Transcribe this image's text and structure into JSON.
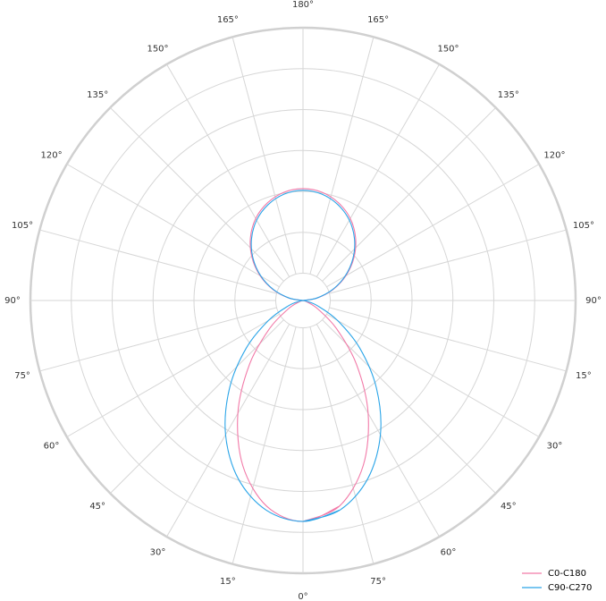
{
  "chart_data": {
    "type": "polar-line",
    "title": "",
    "angle_labels": [
      "0°",
      "15°",
      "30°",
      "45°",
      "60°",
      "75°",
      "90°",
      "105°",
      "120°",
      "135°",
      "150°",
      "165°",
      "180°",
      "165°",
      "150°",
      "135°",
      "120°",
      "105°",
      "90°",
      "15°",
      "30°",
      "45°",
      "60°",
      "75°"
    ],
    "angle_zero": "bottom",
    "radial_max": 100,
    "radial_rings": [
      10,
      25,
      40,
      55,
      70,
      85,
      100
    ],
    "grid": true,
    "legend_placement": "bottom-right",
    "angles_deg": [
      0,
      10,
      20,
      30,
      40,
      50,
      60,
      70,
      80,
      90,
      100,
      110,
      120,
      130,
      140,
      150,
      160,
      170,
      180
    ],
    "series": [
      {
        "name": "C0-C180",
        "color": "#f27aa8",
        "values": [
          81,
          76.6,
          64.5,
          47.8,
          30.5,
          16.0,
          6.4,
          1.6,
          0.1,
          0,
          5.3,
          11.7,
          18.2,
          24.4,
          30.0,
          34.7,
          38.1,
          40.3,
          41
        ]
      },
      {
        "name": "C90-C270",
        "color": "#2ba5e8",
        "values": [
          81,
          78.0,
          69.5,
          56.8,
          41.9,
          27.2,
          14.6,
          5.7,
          1.1,
          0,
          5.1,
          11.4,
          17.8,
          23.9,
          29.4,
          34.0,
          37.4,
          39.6,
          40.4
        ]
      }
    ]
  }
}
